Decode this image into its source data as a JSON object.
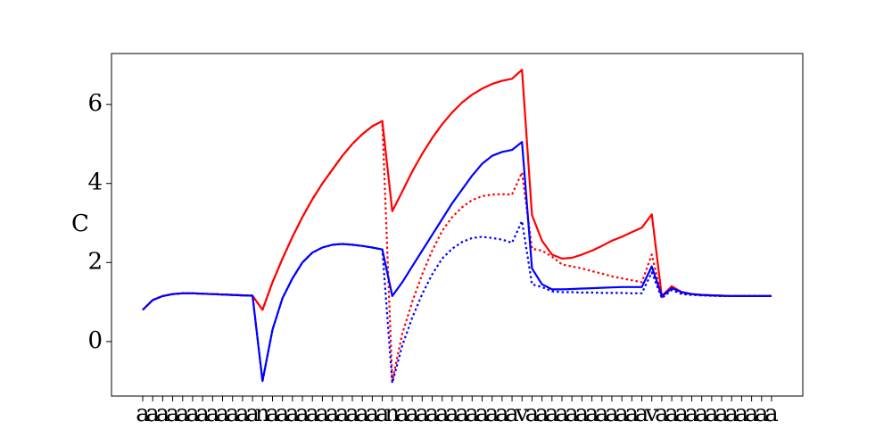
{
  "chart_data": {
    "type": "line",
    "ylabel": "C",
    "categories": [
      "a",
      "a",
      "a",
      "a",
      "a",
      "a",
      "a",
      "a",
      "a",
      "a",
      "a",
      "a",
      "n",
      "a",
      "a",
      "a",
      "a",
      "a",
      "a",
      "a",
      "a",
      "a",
      "a",
      "a",
      "a",
      "n",
      "a",
      "a",
      "a",
      "a",
      "a",
      "a",
      "a",
      "a",
      "a",
      "a",
      "a",
      "a",
      "v",
      "a",
      "a",
      "a",
      "a",
      "a",
      "a",
      "a",
      "a",
      "a",
      "a",
      "a",
      "a",
      "v",
      "a",
      "a",
      "a",
      "a",
      "a",
      "a",
      "a",
      "a",
      "a",
      "a",
      "a",
      "a"
    ],
    "ylim": [
      -1.38,
      7.29
    ],
    "yticks": [
      0,
      2,
      4,
      6
    ],
    "series": [
      {
        "color": "#ff0000",
        "linestyle": "dotted",
        "values": [
          0.8,
          1.05,
          1.15,
          1.2,
          1.22,
          1.22,
          1.21,
          1.2,
          1.19,
          1.18,
          1.17,
          1.16,
          0.8,
          1.5,
          2.1,
          2.65,
          3.15,
          3.6,
          4.0,
          4.35,
          4.7,
          5.0,
          5.25,
          5.45,
          5.58,
          -1.0,
          0.2,
          1.0,
          1.7,
          2.3,
          2.8,
          3.15,
          3.4,
          3.58,
          3.68,
          3.72,
          3.73,
          3.72,
          4.28,
          2.35,
          2.3,
          2.15,
          1.95,
          1.9,
          1.85,
          1.78,
          1.72,
          1.65,
          1.6,
          1.55,
          1.5,
          2.2,
          1.12,
          1.35,
          1.22,
          1.19,
          1.17,
          1.16,
          1.15,
          1.15,
          1.15,
          1.15,
          1.15,
          1.15
        ]
      },
      {
        "color": "#0000ff",
        "linestyle": "dotted",
        "values": [
          0.8,
          1.05,
          1.15,
          1.2,
          1.22,
          1.22,
          1.21,
          1.2,
          1.19,
          1.18,
          1.17,
          1.16,
          -1.0,
          0.3,
          1.1,
          1.6,
          2.0,
          2.25,
          2.38,
          2.45,
          2.47,
          2.45,
          2.42,
          2.38,
          2.33,
          -1.05,
          -0.1,
          0.6,
          1.2,
          1.7,
          2.1,
          2.35,
          2.52,
          2.62,
          2.65,
          2.62,
          2.58,
          2.5,
          3.05,
          1.45,
          1.38,
          1.27,
          1.25,
          1.25,
          1.24,
          1.24,
          1.23,
          1.23,
          1.23,
          1.22,
          1.22,
          1.75,
          1.1,
          1.3,
          1.2,
          1.18,
          1.17,
          1.16,
          1.15,
          1.15,
          1.15,
          1.15,
          1.15,
          1.15
        ]
      },
      {
        "color": "#ff0000",
        "linestyle": "solid",
        "values": [
          0.8,
          1.05,
          1.15,
          1.2,
          1.22,
          1.22,
          1.21,
          1.2,
          1.19,
          1.18,
          1.17,
          1.16,
          0.8,
          1.5,
          2.1,
          2.65,
          3.15,
          3.6,
          4.0,
          4.35,
          4.7,
          5.0,
          5.25,
          5.45,
          5.58,
          3.3,
          3.8,
          4.3,
          4.75,
          5.15,
          5.5,
          5.8,
          6.05,
          6.25,
          6.4,
          6.52,
          6.6,
          6.65,
          6.88,
          3.2,
          2.55,
          2.2,
          2.1,
          2.12,
          2.2,
          2.3,
          2.42,
          2.55,
          2.65,
          2.77,
          2.88,
          3.22,
          1.15,
          1.4,
          1.25,
          1.2,
          1.18,
          1.17,
          1.16,
          1.15,
          1.15,
          1.15,
          1.15,
          1.15
        ]
      },
      {
        "color": "#0000ff",
        "linestyle": "solid",
        "values": [
          0.8,
          1.05,
          1.15,
          1.2,
          1.22,
          1.22,
          1.21,
          1.2,
          1.19,
          1.18,
          1.17,
          1.16,
          -1.0,
          0.3,
          1.1,
          1.6,
          2.0,
          2.25,
          2.38,
          2.45,
          2.47,
          2.45,
          2.42,
          2.38,
          2.33,
          1.15,
          1.5,
          1.9,
          2.3,
          2.7,
          3.1,
          3.5,
          3.85,
          4.2,
          4.5,
          4.7,
          4.8,
          4.85,
          5.05,
          1.85,
          1.45,
          1.32,
          1.32,
          1.33,
          1.34,
          1.35,
          1.36,
          1.37,
          1.38,
          1.38,
          1.38,
          1.9,
          1.15,
          1.35,
          1.25,
          1.2,
          1.18,
          1.17,
          1.16,
          1.15,
          1.15,
          1.15,
          1.15,
          1.15
        ]
      }
    ]
  }
}
